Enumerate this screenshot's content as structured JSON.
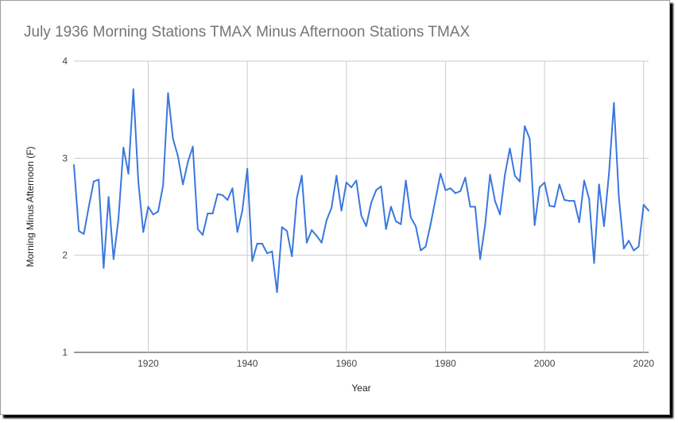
{
  "chart_data": {
    "type": "line",
    "title": "July 1936 Morning Stations TMAX Minus Afternoon Stations TMAX",
    "xlabel": "Year",
    "ylabel": "Morning Minus Afternoon (F)",
    "xlim": [
      1905,
      2021
    ],
    "ylim": [
      1,
      4
    ],
    "x_ticks": [
      1920,
      1940,
      1960,
      1980,
      2000,
      2020
    ],
    "y_ticks": [
      1,
      2,
      3,
      4
    ],
    "grid": true,
    "legend": "none",
    "line_color": "#3a78de",
    "series": [
      {
        "x": [
          1905,
          1906,
          1907,
          1908,
          1909,
          1910,
          1911,
          1912,
          1913,
          1914,
          1915,
          1916,
          1917,
          1918,
          1919,
          1920,
          1921,
          1922,
          1923,
          1924,
          1925,
          1926,
          1927,
          1928,
          1929,
          1930,
          1931,
          1932,
          1933,
          1934,
          1935,
          1936,
          1937,
          1938,
          1939,
          1940,
          1941,
          1942,
          1943,
          1944,
          1945,
          1946,
          1947,
          1948,
          1949,
          1950,
          1951,
          1952,
          1953,
          1954,
          1955,
          1956,
          1957,
          1958,
          1959,
          1960,
          1961,
          1962,
          1963,
          1964,
          1965,
          1966,
          1967,
          1968,
          1969,
          1970,
          1971,
          1972,
          1973,
          1974,
          1975,
          1976,
          1977,
          1978,
          1979,
          1980,
          1981,
          1982,
          1983,
          1984,
          1985,
          1986,
          1987,
          1988,
          1989,
          1990,
          1991,
          1992,
          1993,
          1994,
          1995,
          1996,
          1997,
          1998,
          1999,
          2000,
          2001,
          2002,
          2003,
          2004,
          2005,
          2006,
          2007,
          2008,
          2009,
          2010,
          2011,
          2012,
          2013,
          2014,
          2015,
          2016,
          2017,
          2018,
          2019,
          2020,
          2021
        ],
        "values": [
          2.93,
          2.25,
          2.22,
          2.5,
          2.76,
          2.78,
          1.87,
          2.6,
          1.96,
          2.38,
          3.11,
          2.84,
          3.71,
          2.76,
          2.24,
          2.5,
          2.42,
          2.45,
          2.72,
          3.67,
          3.2,
          3.02,
          2.73,
          2.96,
          3.12,
          2.27,
          2.21,
          2.43,
          2.43,
          2.63,
          2.62,
          2.57,
          2.69,
          2.24,
          2.46,
          2.89,
          1.94,
          2.12,
          2.12,
          2.02,
          2.04,
          1.62,
          2.29,
          2.25,
          1.99,
          2.59,
          2.82,
          2.13,
          2.26,
          2.2,
          2.13,
          2.36,
          2.49,
          2.82,
          2.46,
          2.75,
          2.7,
          2.77,
          2.41,
          2.3,
          2.54,
          2.67,
          2.71,
          2.27,
          2.5,
          2.35,
          2.32,
          2.77,
          2.39,
          2.3,
          2.05,
          2.09,
          2.32,
          2.58,
          2.84,
          2.67,
          2.69,
          2.64,
          2.66,
          2.8,
          2.5,
          2.5,
          1.96,
          2.31,
          2.83,
          2.56,
          2.42,
          2.83,
          3.1,
          2.82,
          2.76,
          3.33,
          3.2,
          2.31,
          2.7,
          2.75,
          2.51,
          2.5,
          2.73,
          2.57,
          2.56,
          2.56,
          2.34,
          2.77,
          2.58,
          1.92,
          2.73,
          2.3,
          2.84,
          3.57,
          2.6,
          2.07,
          2.15,
          2.05,
          2.09,
          2.52,
          2.46
        ]
      }
    ]
  }
}
